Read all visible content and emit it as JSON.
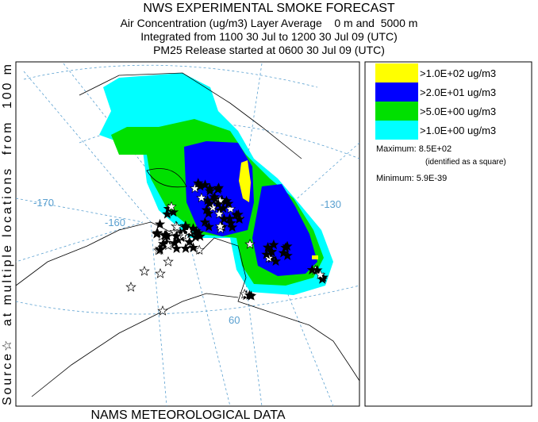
{
  "header": {
    "title": "NWS EXPERIMENTAL SMOKE FORECAST",
    "lines": [
      "Air Concentration (ug/m3) Layer Average    0 m and  5000 m",
      "Integrated from 1100 30 Jul to 1200 30 Jul 09 (UTC)",
      "PM25 Release started at 0600 30 Jul 09 (UTC)"
    ]
  },
  "side_label": "Source☆  at multiple locations  from  100 m",
  "footer": "NAMS METEOROLOGICAL DATA",
  "map": {
    "labels": [
      "-170",
      "-160",
      "-130",
      "60"
    ]
  },
  "legend": {
    "items": [
      {
        "label": ">1.0E+02 ug/m3",
        "color": "#ffff00"
      },
      {
        "label": ">2.0E+01 ug/m3",
        "color": "#0000ff"
      },
      {
        "label": ">5.0E+00 ug/m3",
        "color": "#00e000"
      },
      {
        "label": ">1.0E+00 ug/m3",
        "color": "#00ffff"
      }
    ],
    "maximum": "Maximum: 8.5E+02",
    "maximum_note": "(identified as a square)",
    "minimum": "Minimum: 5.9E-39"
  }
}
